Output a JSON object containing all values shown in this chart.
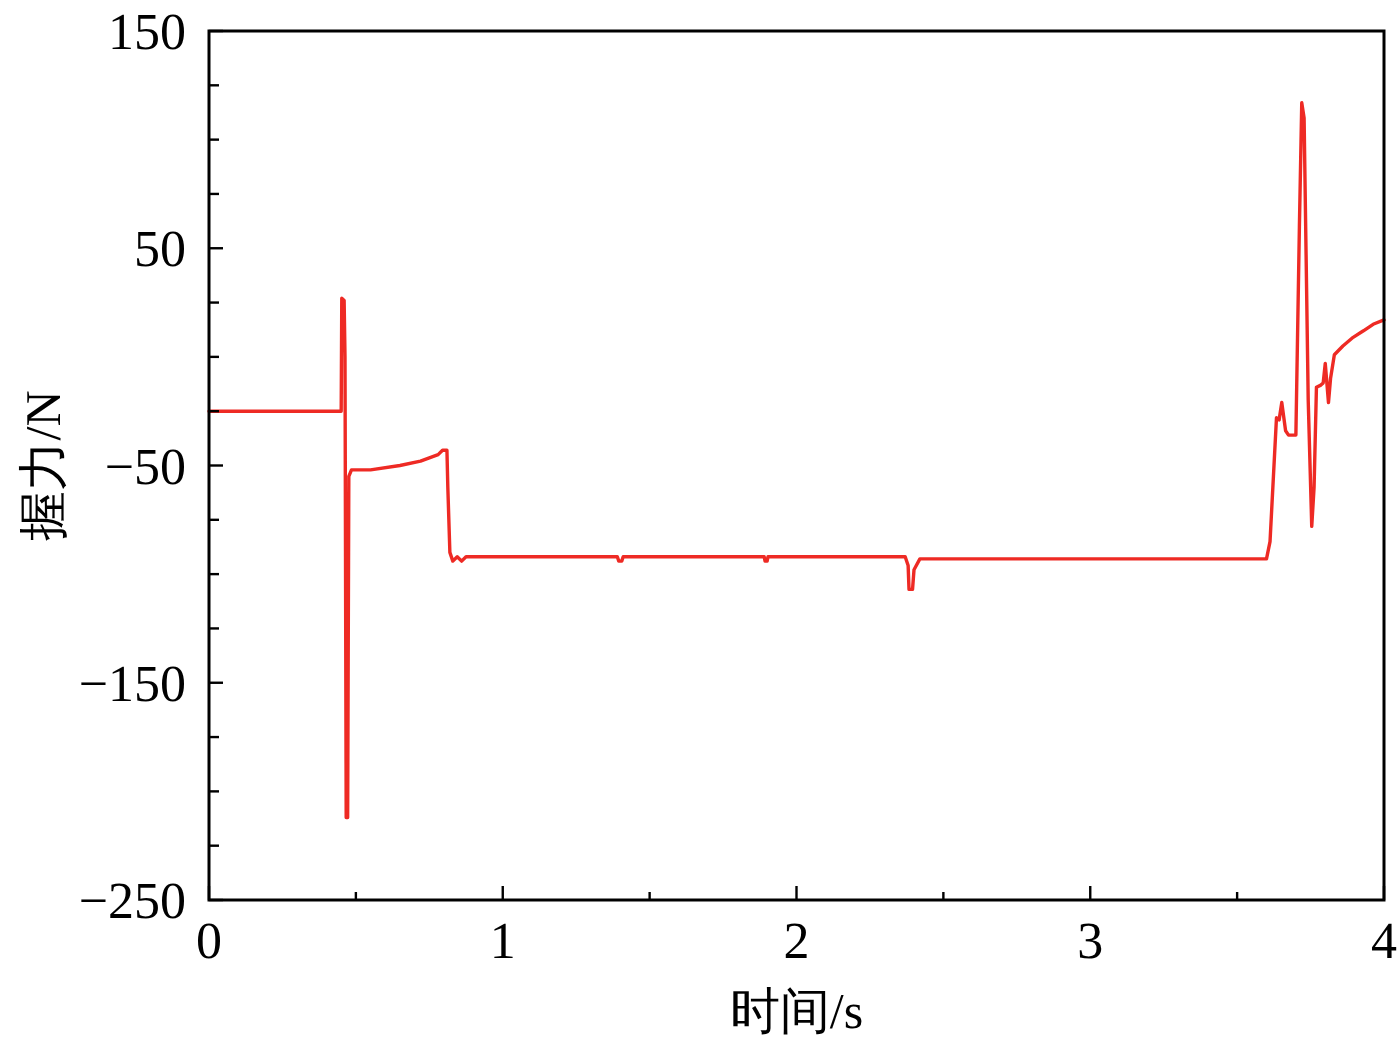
{
  "chart_data": {
    "type": "line",
    "xlabel": "时间/s",
    "ylabel": "握力/N",
    "color": "#ee2a24",
    "x": [
      0,
      0.45,
      0.452,
      0.46,
      0.463,
      0.467,
      0.472,
      0.476,
      0.485,
      0.55,
      0.65,
      0.72,
      0.78,
      0.795,
      0.81,
      0.813,
      0.82,
      0.83,
      0.845,
      0.86,
      0.875,
      0.89,
      1.39,
      1.395,
      1.405,
      1.41,
      1.89,
      1.893,
      1.9,
      1.903,
      2.37,
      2.38,
      2.383,
      2.395,
      2.4,
      2.42,
      2.45,
      3.6,
      3.612,
      3.634,
      3.643,
      3.652,
      3.665,
      3.675,
      3.7,
      3.712,
      3.72,
      3.728,
      3.742,
      3.754,
      3.762,
      3.77,
      3.785,
      3.793,
      3.8,
      3.811,
      3.818,
      3.831,
      3.86,
      3.895,
      3.93,
      3.963,
      4
    ],
    "values": [
      -25,
      -25,
      27,
      26,
      0,
      -212,
      -212,
      -55,
      -52,
      -52,
      -50,
      -48,
      -45,
      -43,
      -43,
      -60,
      -90,
      -94,
      -92,
      -94,
      -92,
      -92,
      -92,
      -94,
      -94,
      -92,
      -92,
      -94,
      -94,
      -92,
      -92,
      -96,
      -107,
      -107,
      -98,
      -93,
      -93,
      -93,
      -85,
      -28,
      -29,
      -21,
      -34,
      -36,
      -36,
      60,
      117,
      110,
      -20,
      -78,
      -60,
      -14,
      -13,
      -12,
      -3,
      -21,
      -10,
      1,
      5,
      9,
      12,
      15,
      17
    ],
    "xlim": [
      0,
      4
    ],
    "ylim": [
      -250,
      150
    ],
    "xticks": [
      0,
      {
        "value": 0.5,
        "label": null
      },
      1,
      {
        "value": 1.5,
        "label": null
      },
      2,
      {
        "value": 2.5,
        "label": null
      },
      3,
      {
        "value": 3.5,
        "label": null
      },
      4
    ],
    "yticks": [
      {
        "value": -250,
        "label": "−250"
      },
      {
        "value": -225,
        "label": null
      },
      {
        "value": -200,
        "label": null
      },
      {
        "value": -175,
        "label": null
      },
      {
        "value": -150,
        "label": "−150"
      },
      {
        "value": -125,
        "label": null
      },
      {
        "value": -100,
        "label": null
      },
      {
        "value": -75,
        "label": null
      },
      {
        "value": -50,
        "label": "−50"
      },
      {
        "value": -25,
        "label": null
      },
      {
        "value": 0,
        "label": null
      },
      {
        "value": 25,
        "label": null
      },
      50,
      {
        "value": 75,
        "label": null
      },
      {
        "value": 100,
        "label": null
      },
      {
        "value": 125,
        "label": null
      },
      150
    ]
  }
}
